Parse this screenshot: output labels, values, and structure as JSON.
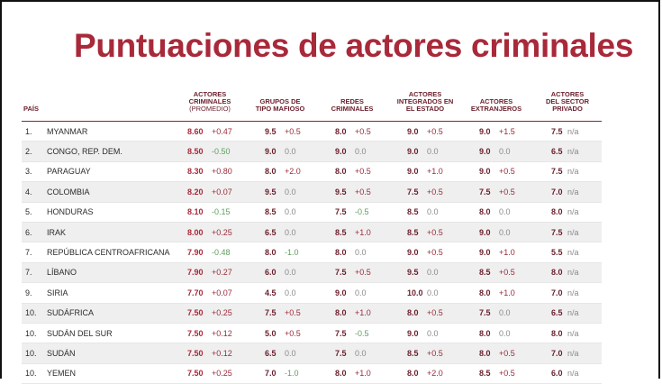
{
  "title": "Puntuaciones de actores criminales",
  "headers": {
    "country": "PAÍS",
    "criminal_actors": "ACTORES<br>CRIMINALES",
    "criminal_actors_sub": "(PROMEDIO)",
    "mafia": "GRUPOS DE<br>TIPO MAFIOSO",
    "networks": "REDES<br>CRIMINALES",
    "state": "ACTORES<br>INTEGRADOS EN<br>EL ESTADO",
    "foreign": "ACTORES<br>EXTRANJEROS",
    "private": "ACTORES<br>DEL SECTOR<br>PRIVADO"
  },
  "rows": [
    {
      "rank": "1.",
      "country": "MYANMAR",
      "avg": "8.60",
      "avg_d": "+0.47",
      "mafia": "9.5",
      "mafia_d": "+0.5",
      "net": "8.0",
      "net_d": "+0.5",
      "state": "9.0",
      "state_d": "+0.5",
      "foreign": "9.0",
      "foreign_d": "+1.5",
      "private": "7.5",
      "private_d": "n/a"
    },
    {
      "rank": "2.",
      "country": "CONGO, REP. DEM.",
      "avg": "8.50",
      "avg_d": "-0.50",
      "mafia": "9.0",
      "mafia_d": "0.0",
      "net": "9.0",
      "net_d": "0.0",
      "state": "9.0",
      "state_d": "0.0",
      "foreign": "9.0",
      "foreign_d": "0.0",
      "private": "6.5",
      "private_d": "n/a"
    },
    {
      "rank": "3.",
      "country": "PARAGUAY",
      "avg": "8.30",
      "avg_d": "+0.80",
      "mafia": "8.0",
      "mafia_d": "+2.0",
      "net": "8.0",
      "net_d": "+0.5",
      "state": "9.0",
      "state_d": "+1.0",
      "foreign": "9.0",
      "foreign_d": "+0.5",
      "private": "7.5",
      "private_d": "n/a"
    },
    {
      "rank": "4.",
      "country": "COLOMBIA",
      "avg": "8.20",
      "avg_d": "+0.07",
      "mafia": "9.5",
      "mafia_d": "0.0",
      "net": "9.5",
      "net_d": "+0.5",
      "state": "7.5",
      "state_d": "+0.5",
      "foreign": "7.5",
      "foreign_d": "+0.5",
      "private": "7.0",
      "private_d": "n/a"
    },
    {
      "rank": "5.",
      "country": "HONDURAS",
      "avg": "8.10",
      "avg_d": "-0.15",
      "mafia": "8.5",
      "mafia_d": "0.0",
      "net": "7.5",
      "net_d": "-0.5",
      "state": "8.5",
      "state_d": "0.0",
      "foreign": "8.0",
      "foreign_d": "0.0",
      "private": "8.0",
      "private_d": "n/a"
    },
    {
      "rank": "6.",
      "country": "IRAK",
      "avg": "8.00",
      "avg_d": "+0.25",
      "mafia": "6.5",
      "mafia_d": "0.0",
      "net": "8.5",
      "net_d": "+1.0",
      "state": "8.5",
      "state_d": "+0.5",
      "foreign": "9.0",
      "foreign_d": "0.0",
      "private": "7.5",
      "private_d": "n/a"
    },
    {
      "rank": "7.",
      "country": "REPÚBLICA CENTROAFRICANA",
      "avg": "7.90",
      "avg_d": "-0.48",
      "mafia": "8.0",
      "mafia_d": "-1.0",
      "net": "8.0",
      "net_d": "0.0",
      "state": "9.0",
      "state_d": "+0.5",
      "foreign": "9.0",
      "foreign_d": "+1.0",
      "private": "5.5",
      "private_d": "n/a"
    },
    {
      "rank": "7.",
      "country": "LÍBANO",
      "avg": "7.90",
      "avg_d": "+0.27",
      "mafia": "6.0",
      "mafia_d": "0.0",
      "net": "7.5",
      "net_d": "+0.5",
      "state": "9.5",
      "state_d": "0.0",
      "foreign": "8.5",
      "foreign_d": "+0.5",
      "private": "8.0",
      "private_d": "n/a"
    },
    {
      "rank": "9.",
      "country": "SIRIA",
      "avg": "7.70",
      "avg_d": "+0.07",
      "mafia": "4.5",
      "mafia_d": "0.0",
      "net": "9.0",
      "net_d": "0.0",
      "state": "10.0",
      "state_d": "0.0",
      "foreign": "8.0",
      "foreign_d": "+1.0",
      "private": "7.0",
      "private_d": "n/a"
    },
    {
      "rank": "10.",
      "country": "SUDÁFRICA",
      "avg": "7.50",
      "avg_d": "+0.25",
      "mafia": "7.5",
      "mafia_d": "+0.5",
      "net": "8.0",
      "net_d": "+1.0",
      "state": "8.0",
      "state_d": "+0.5",
      "foreign": "7.5",
      "foreign_d": "0.0",
      "private": "6.5",
      "private_d": "n/a"
    },
    {
      "rank": "10.",
      "country": "SUDÁN DEL SUR",
      "avg": "7.50",
      "avg_d": "+0.12",
      "mafia": "5.0",
      "mafia_d": "+0.5",
      "net": "7.5",
      "net_d": "-0.5",
      "state": "9.0",
      "state_d": "0.0",
      "foreign": "8.0",
      "foreign_d": "0.0",
      "private": "8.0",
      "private_d": "n/a"
    },
    {
      "rank": "10.",
      "country": "SUDÁN",
      "avg": "7.50",
      "avg_d": "+0.12",
      "mafia": "6.5",
      "mafia_d": "0.0",
      "net": "7.5",
      "net_d": "0.0",
      "state": "8.5",
      "state_d": "+0.5",
      "foreign": "8.0",
      "foreign_d": "+0.5",
      "private": "7.0",
      "private_d": "n/a"
    },
    {
      "rank": "10.",
      "country": "YEMEN",
      "avg": "7.50",
      "avg_d": "+0.25",
      "mafia": "7.0",
      "mafia_d": "-1.0",
      "net": "8.0",
      "net_d": "+1.0",
      "state": "8.0",
      "state_d": "+2.0",
      "foreign": "8.5",
      "foreign_d": "+0.5",
      "private": "6.0",
      "private_d": "n/a"
    }
  ]
}
